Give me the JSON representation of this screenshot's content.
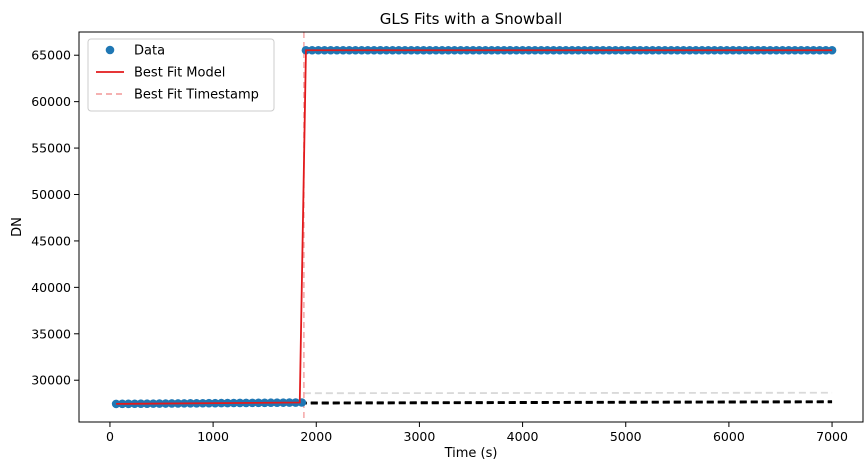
{
  "chart_data": {
    "type": "scatter",
    "title": "GLS Fits with a Snowball",
    "xlabel": "Time (s)",
    "ylabel": "DN",
    "xlim": [
      -300,
      7300
    ],
    "ylim": [
      25500,
      67500
    ],
    "xticks": [
      0,
      1000,
      2000,
      3000,
      4000,
      5000,
      6000,
      7000
    ],
    "yticks": [
      30000,
      35000,
      40000,
      45000,
      50000,
      55000,
      60000,
      65000
    ],
    "grid": false,
    "legend_placement": "top-left",
    "colors": {
      "data": "#1f77b4",
      "best_fit_model": "#e31a1c",
      "best_fit_timestamp": "#f4a6a6",
      "fit_lines": "#000000",
      "faint_fit_lines": "#d9d9d9"
    },
    "series": [
      {
        "name": "Data",
        "style": "markers",
        "segments": [
          {
            "x_start": 60,
            "x_end": 1840,
            "x_step": 60,
            "y_start": 27450,
            "y_end": 27600
          },
          {
            "x_start": 1900,
            "x_end": 7000,
            "x_step": 60,
            "y_start": 65535,
            "y_end": 65535
          }
        ]
      },
      {
        "name": "Best Fit Model",
        "style": "solid-line",
        "x": [
          60,
          1840,
          1900,
          7000
        ],
        "y": [
          27450,
          27600,
          65535,
          65535
        ]
      },
      {
        "name": "Best Fit Timestamp",
        "style": "dashed-vertical",
        "x_value": 1880
      }
    ],
    "extra_lines": [
      {
        "style": "dashed",
        "color": "#000000",
        "x": [
          60,
          1840
        ],
        "y": [
          27450,
          27580
        ]
      },
      {
        "style": "dashed",
        "color": "#000000",
        "x": [
          1840,
          7000
        ],
        "y": [
          27580,
          27720
        ]
      },
      {
        "style": "dashed",
        "color": "#000000",
        "x": [
          1840,
          7000
        ],
        "y": [
          27500,
          27640
        ]
      },
      {
        "style": "dashed",
        "color": "#d9d9d9",
        "x": [
          1880,
          7000
        ],
        "y": [
          28600,
          28650
        ]
      }
    ]
  }
}
